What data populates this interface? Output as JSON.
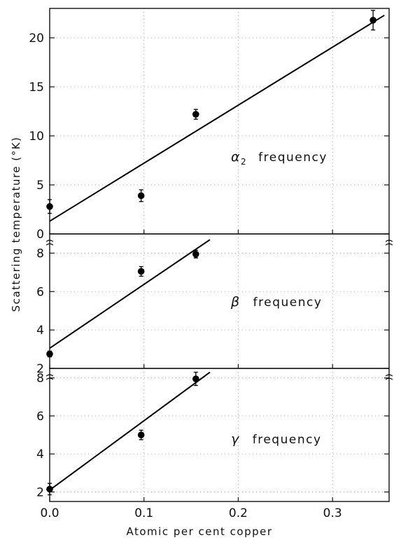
{
  "chart_data": [
    {
      "type": "scatter",
      "label": "α",
      "label_sub": "2",
      "label_rest": "frequency",
      "ylim": [
        0,
        23
      ],
      "yticks": [
        0,
        5,
        10,
        15,
        20
      ],
      "points": [
        {
          "x": 0.0,
          "y": 2.8,
          "err": 0.7
        },
        {
          "x": 0.097,
          "y": 3.9,
          "err": 0.6
        },
        {
          "x": 0.155,
          "y": 12.2,
          "err": 0.5
        },
        {
          "x": 0.343,
          "y": 21.8,
          "err": 1.0
        }
      ],
      "fit": [
        [
          0.0,
          1.3
        ],
        [
          0.355,
          22.3
        ]
      ]
    },
    {
      "type": "scatter",
      "label": "β",
      "label_sub": "",
      "label_rest": "frequency",
      "ylim": [
        2,
        9
      ],
      "yticks": [
        2,
        4,
        6,
        8
      ],
      "points": [
        {
          "x": 0.0,
          "y": 2.75,
          "err": 0.15
        },
        {
          "x": 0.097,
          "y": 7.05,
          "err": 0.25
        },
        {
          "x": 0.155,
          "y": 7.95,
          "err": 0.2
        }
      ],
      "fit": [
        [
          0.0,
          3.05
        ],
        [
          0.17,
          8.7
        ]
      ]
    },
    {
      "type": "scatter",
      "label": "γ",
      "label_sub": "",
      "label_rest": "frequency",
      "ylim": [
        1.5,
        8.5
      ],
      "yticks": [
        2,
        4,
        6,
        8
      ],
      "points": [
        {
          "x": 0.0,
          "y": 2.15,
          "err": 0.3
        },
        {
          "x": 0.097,
          "y": 5.0,
          "err": 0.25
        },
        {
          "x": 0.155,
          "y": 7.95,
          "err": 0.35
        }
      ],
      "fit": [
        [
          0.0,
          2.1
        ],
        [
          0.17,
          8.3
        ]
      ]
    }
  ],
  "x_axis": {
    "label": "Atomic per cent copper",
    "xlim": [
      0.0,
      0.36
    ],
    "ticks": [
      "0.0",
      "0.1",
      "0.2",
      "0.3"
    ]
  },
  "y_axis_label": "Scattering temperature (°K)"
}
